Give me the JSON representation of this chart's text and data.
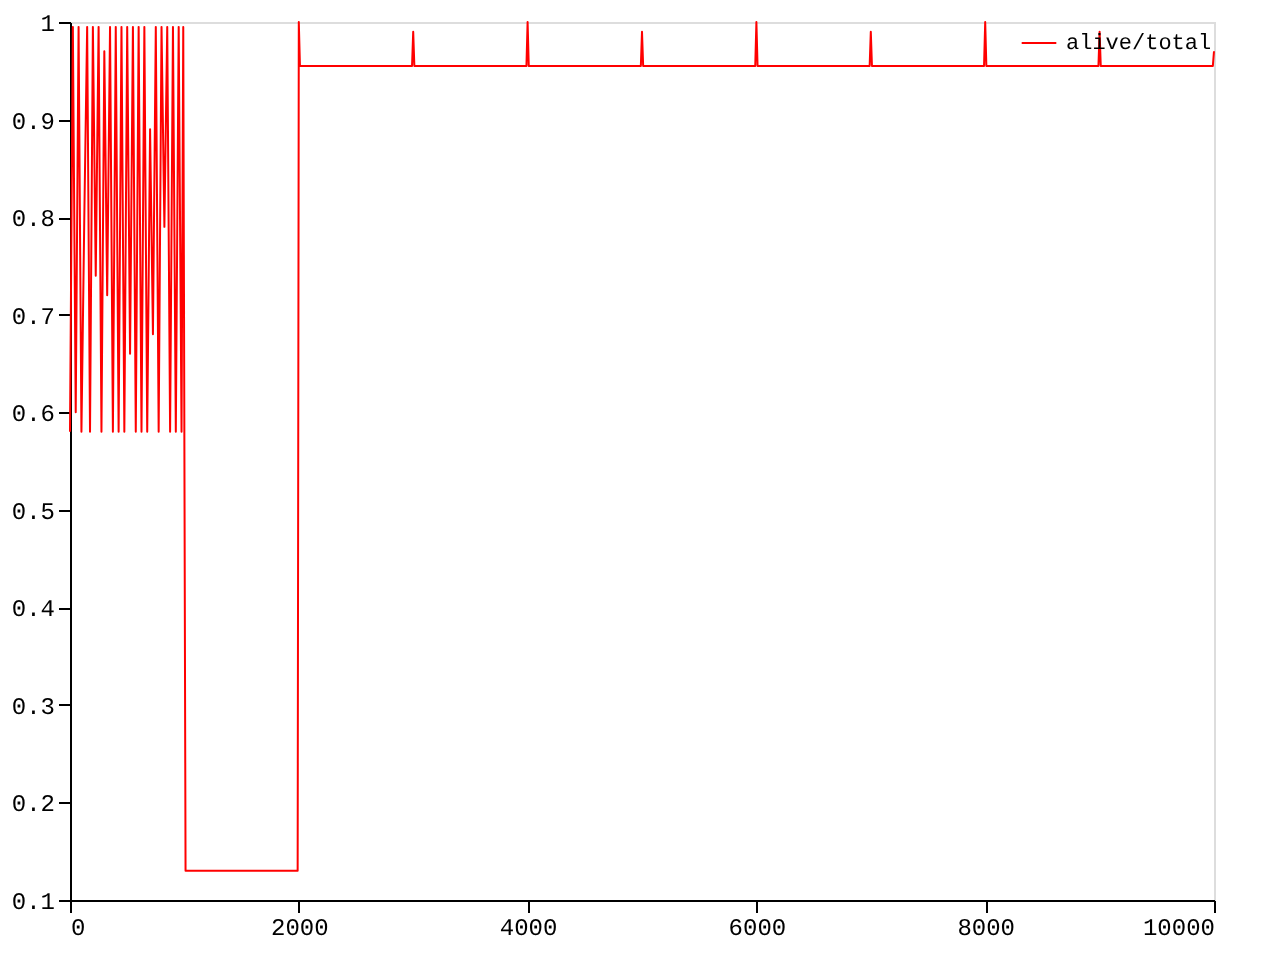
{
  "chart_data": {
    "type": "line",
    "xlim": [
      0,
      10000
    ],
    "ylim": [
      0.1,
      1
    ],
    "xticks": [
      0,
      2000,
      4000,
      6000,
      8000,
      10000
    ],
    "yticks": [
      0.1,
      0.2,
      0.3,
      0.4,
      0.5,
      0.6,
      0.7,
      0.8,
      0.9,
      1
    ],
    "grid": false,
    "legend": "top right",
    "series": [
      {
        "name": "alive/total",
        "color": "#ff0000",
        "x": [
          0,
          25,
          50,
          75,
          100,
          125,
          150,
          175,
          200,
          225,
          250,
          275,
          300,
          325,
          350,
          375,
          400,
          425,
          450,
          475,
          500,
          525,
          550,
          575,
          600,
          625,
          650,
          675,
          700,
          725,
          750,
          775,
          800,
          825,
          850,
          875,
          900,
          925,
          950,
          975,
          990,
          1000,
          1010,
          1990,
          2000,
          2010,
          2990,
          3000,
          3010,
          3990,
          4000,
          4010,
          4990,
          5000,
          5010,
          5990,
          6000,
          6010,
          6990,
          7000,
          7010,
          7990,
          8000,
          8010,
          8990,
          9000,
          9010,
          9990,
          10000
        ],
        "values": [
          0.58,
          0.995,
          0.6,
          0.995,
          0.58,
          0.8,
          0.995,
          0.58,
          0.995,
          0.74,
          0.995,
          0.58,
          0.97,
          0.72,
          0.995,
          0.58,
          0.995,
          0.58,
          0.995,
          0.58,
          0.995,
          0.66,
          0.995,
          0.58,
          0.995,
          0.58,
          0.995,
          0.58,
          0.89,
          0.68,
          0.995,
          0.58,
          0.995,
          0.79,
          0.995,
          0.58,
          0.995,
          0.58,
          0.995,
          0.58,
          0.995,
          0.56,
          0.13,
          0.13,
          1.0,
          0.955,
          0.955,
          0.99,
          0.955,
          0.955,
          1.0,
          0.955,
          0.955,
          0.99,
          0.955,
          0.955,
          1.0,
          0.955,
          0.955,
          0.99,
          0.955,
          0.955,
          1.0,
          0.955,
          0.955,
          0.99,
          0.955,
          0.955,
          0.97
        ]
      }
    ]
  }
}
